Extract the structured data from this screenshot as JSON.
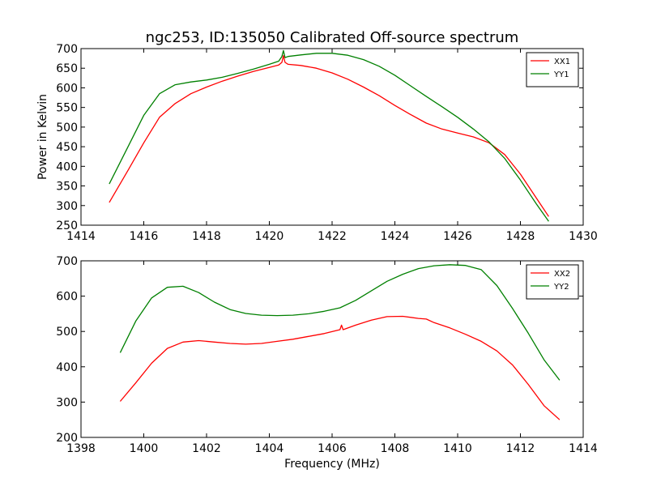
{
  "figure": {
    "title": "ngc253, ID:135050 Calibrated Off-source spectrum"
  },
  "chart_data": [
    {
      "type": "line",
      "title": "ngc253, ID:135050 Calibrated Off-source spectrum",
      "xlabel": "",
      "ylabel": "Power in Kelvin",
      "xlim": [
        1414,
        1430
      ],
      "ylim": [
        250,
        700
      ],
      "xticks": [
        "1414",
        "1416",
        "1418",
        "1420",
        "1422",
        "1424",
        "1426",
        "1428",
        "1430"
      ],
      "yticks": [
        "250",
        "300",
        "350",
        "400",
        "450",
        "500",
        "550",
        "600",
        "650",
        "700"
      ],
      "legend": "top-right",
      "grid": false,
      "series": [
        {
          "name": "XX1",
          "color": "#ff0000",
          "x": [
            1414.9,
            1415.5,
            1416.0,
            1416.5,
            1417.0,
            1417.5,
            1418.0,
            1418.5,
            1419.0,
            1419.5,
            1420.0,
            1420.3,
            1420.4,
            1420.45,
            1420.5,
            1420.6,
            1421.0,
            1421.5,
            1422.0,
            1422.5,
            1423.0,
            1423.5,
            1424.0,
            1424.5,
            1425.0,
            1425.5,
            1426.0,
            1426.5,
            1427.0,
            1427.5,
            1428.0,
            1428.5,
            1428.9
          ],
          "y": [
            308,
            390,
            460,
            525,
            560,
            585,
            602,
            617,
            630,
            642,
            652,
            658,
            665,
            682,
            665,
            660,
            657,
            650,
            638,
            622,
            602,
            580,
            555,
            532,
            510,
            495,
            485,
            475,
            460,
            430,
            380,
            320,
            272
          ]
        },
        {
          "name": "YY1",
          "color": "#008000",
          "x": [
            1414.9,
            1415.5,
            1416.0,
            1416.5,
            1417.0,
            1417.5,
            1418.0,
            1418.5,
            1419.0,
            1419.5,
            1420.0,
            1420.3,
            1420.4,
            1420.45,
            1420.5,
            1420.6,
            1421.0,
            1421.5,
            1422.0,
            1422.5,
            1423.0,
            1423.5,
            1424.0,
            1424.5,
            1425.0,
            1425.5,
            1426.0,
            1426.5,
            1427.0,
            1427.5,
            1428.0,
            1428.5,
            1428.9
          ],
          "y": [
            355,
            450,
            530,
            585,
            608,
            615,
            620,
            627,
            637,
            648,
            660,
            668,
            680,
            695,
            677,
            680,
            684,
            688,
            688,
            683,
            672,
            655,
            632,
            605,
            578,
            552,
            525,
            495,
            462,
            420,
            365,
            305,
            260
          ]
        }
      ]
    },
    {
      "type": "line",
      "title": "",
      "xlabel": "Frequency (MHz)",
      "ylabel": "",
      "xlim": [
        1398,
        1414
      ],
      "ylim": [
        200,
        700
      ],
      "xticks": [
        "1398",
        "1400",
        "1402",
        "1404",
        "1406",
        "1408",
        "1410",
        "1412",
        "1414"
      ],
      "yticks": [
        "200",
        "300",
        "400",
        "500",
        "600",
        "700"
      ],
      "legend": "top-right",
      "grid": false,
      "series": [
        {
          "name": "XX2",
          "color": "#ff0000",
          "x": [
            1399.25,
            1399.75,
            1400.25,
            1400.75,
            1401.25,
            1401.75,
            1402.25,
            1402.75,
            1403.25,
            1403.75,
            1404.25,
            1404.75,
            1405.25,
            1405.75,
            1406.25,
            1406.3,
            1406.35,
            1406.75,
            1407.25,
            1407.75,
            1408.25,
            1408.75,
            1409.0,
            1409.25,
            1409.75,
            1410.25,
            1410.75,
            1411.25,
            1411.75,
            1412.25,
            1412.75,
            1413.25
          ],
          "y": [
            302,
            355,
            410,
            452,
            470,
            474,
            470,
            466,
            464,
            466,
            472,
            478,
            486,
            494,
            505,
            518,
            505,
            518,
            532,
            542,
            543,
            537,
            535,
            525,
            510,
            492,
            472,
            445,
            405,
            350,
            290,
            250
          ]
        },
        {
          "name": "YY2",
          "color": "#008000",
          "x": [
            1399.25,
            1399.75,
            1400.25,
            1400.75,
            1401.25,
            1401.75,
            1402.25,
            1402.75,
            1403.25,
            1403.75,
            1404.25,
            1404.75,
            1405.25,
            1405.75,
            1406.25,
            1406.75,
            1407.25,
            1407.75,
            1408.25,
            1408.75,
            1409.25,
            1409.75,
            1410.25,
            1410.75,
            1411.25,
            1411.75,
            1412.25,
            1412.75,
            1413.25
          ],
          "y": [
            440,
            530,
            595,
            625,
            628,
            610,
            583,
            562,
            551,
            546,
            545,
            546,
            550,
            557,
            567,
            588,
            615,
            642,
            662,
            678,
            686,
            689,
            687,
            675,
            630,
            565,
            495,
            420,
            362
          ]
        }
      ]
    }
  ]
}
